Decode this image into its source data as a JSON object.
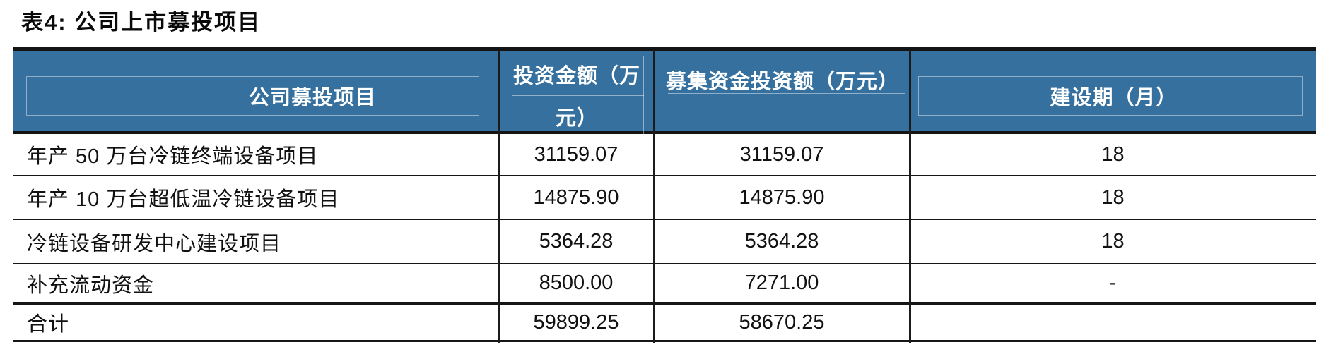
{
  "title": "表4:  公司上市募投项目",
  "colors": {
    "header_bg": "#35709F",
    "header_text": "#FFFFFF",
    "border": "#161616",
    "header_inner_line": "rgba(255,255,255,0.45)"
  },
  "table": {
    "headers": {
      "col1": "公司募投项目",
      "col2_line1": "投资金额（万",
      "col2_line2": "元）",
      "col3": "募集资金投资额（万元）",
      "col4": "建设期（月）"
    },
    "rows": [
      {
        "project": "年产 50 万台冷链终端设备项目",
        "investment": "31159.07",
        "raised": "31159.07",
        "period": "18"
      },
      {
        "project": "年产 10 万台超低温冷链设备项目",
        "investment": "14875.90",
        "raised": "14875.90",
        "period": "18"
      },
      {
        "project": "冷链设备研发中心建设项目",
        "investment": "5364.28",
        "raised": "5364.28",
        "period": "18"
      },
      {
        "project": "补充流动资金",
        "investment": "8500.00",
        "raised": "7271.00",
        "period": "-"
      },
      {
        "project": "合计",
        "investment": "59899.25",
        "raised": "58670.25",
        "period": ""
      }
    ]
  }
}
